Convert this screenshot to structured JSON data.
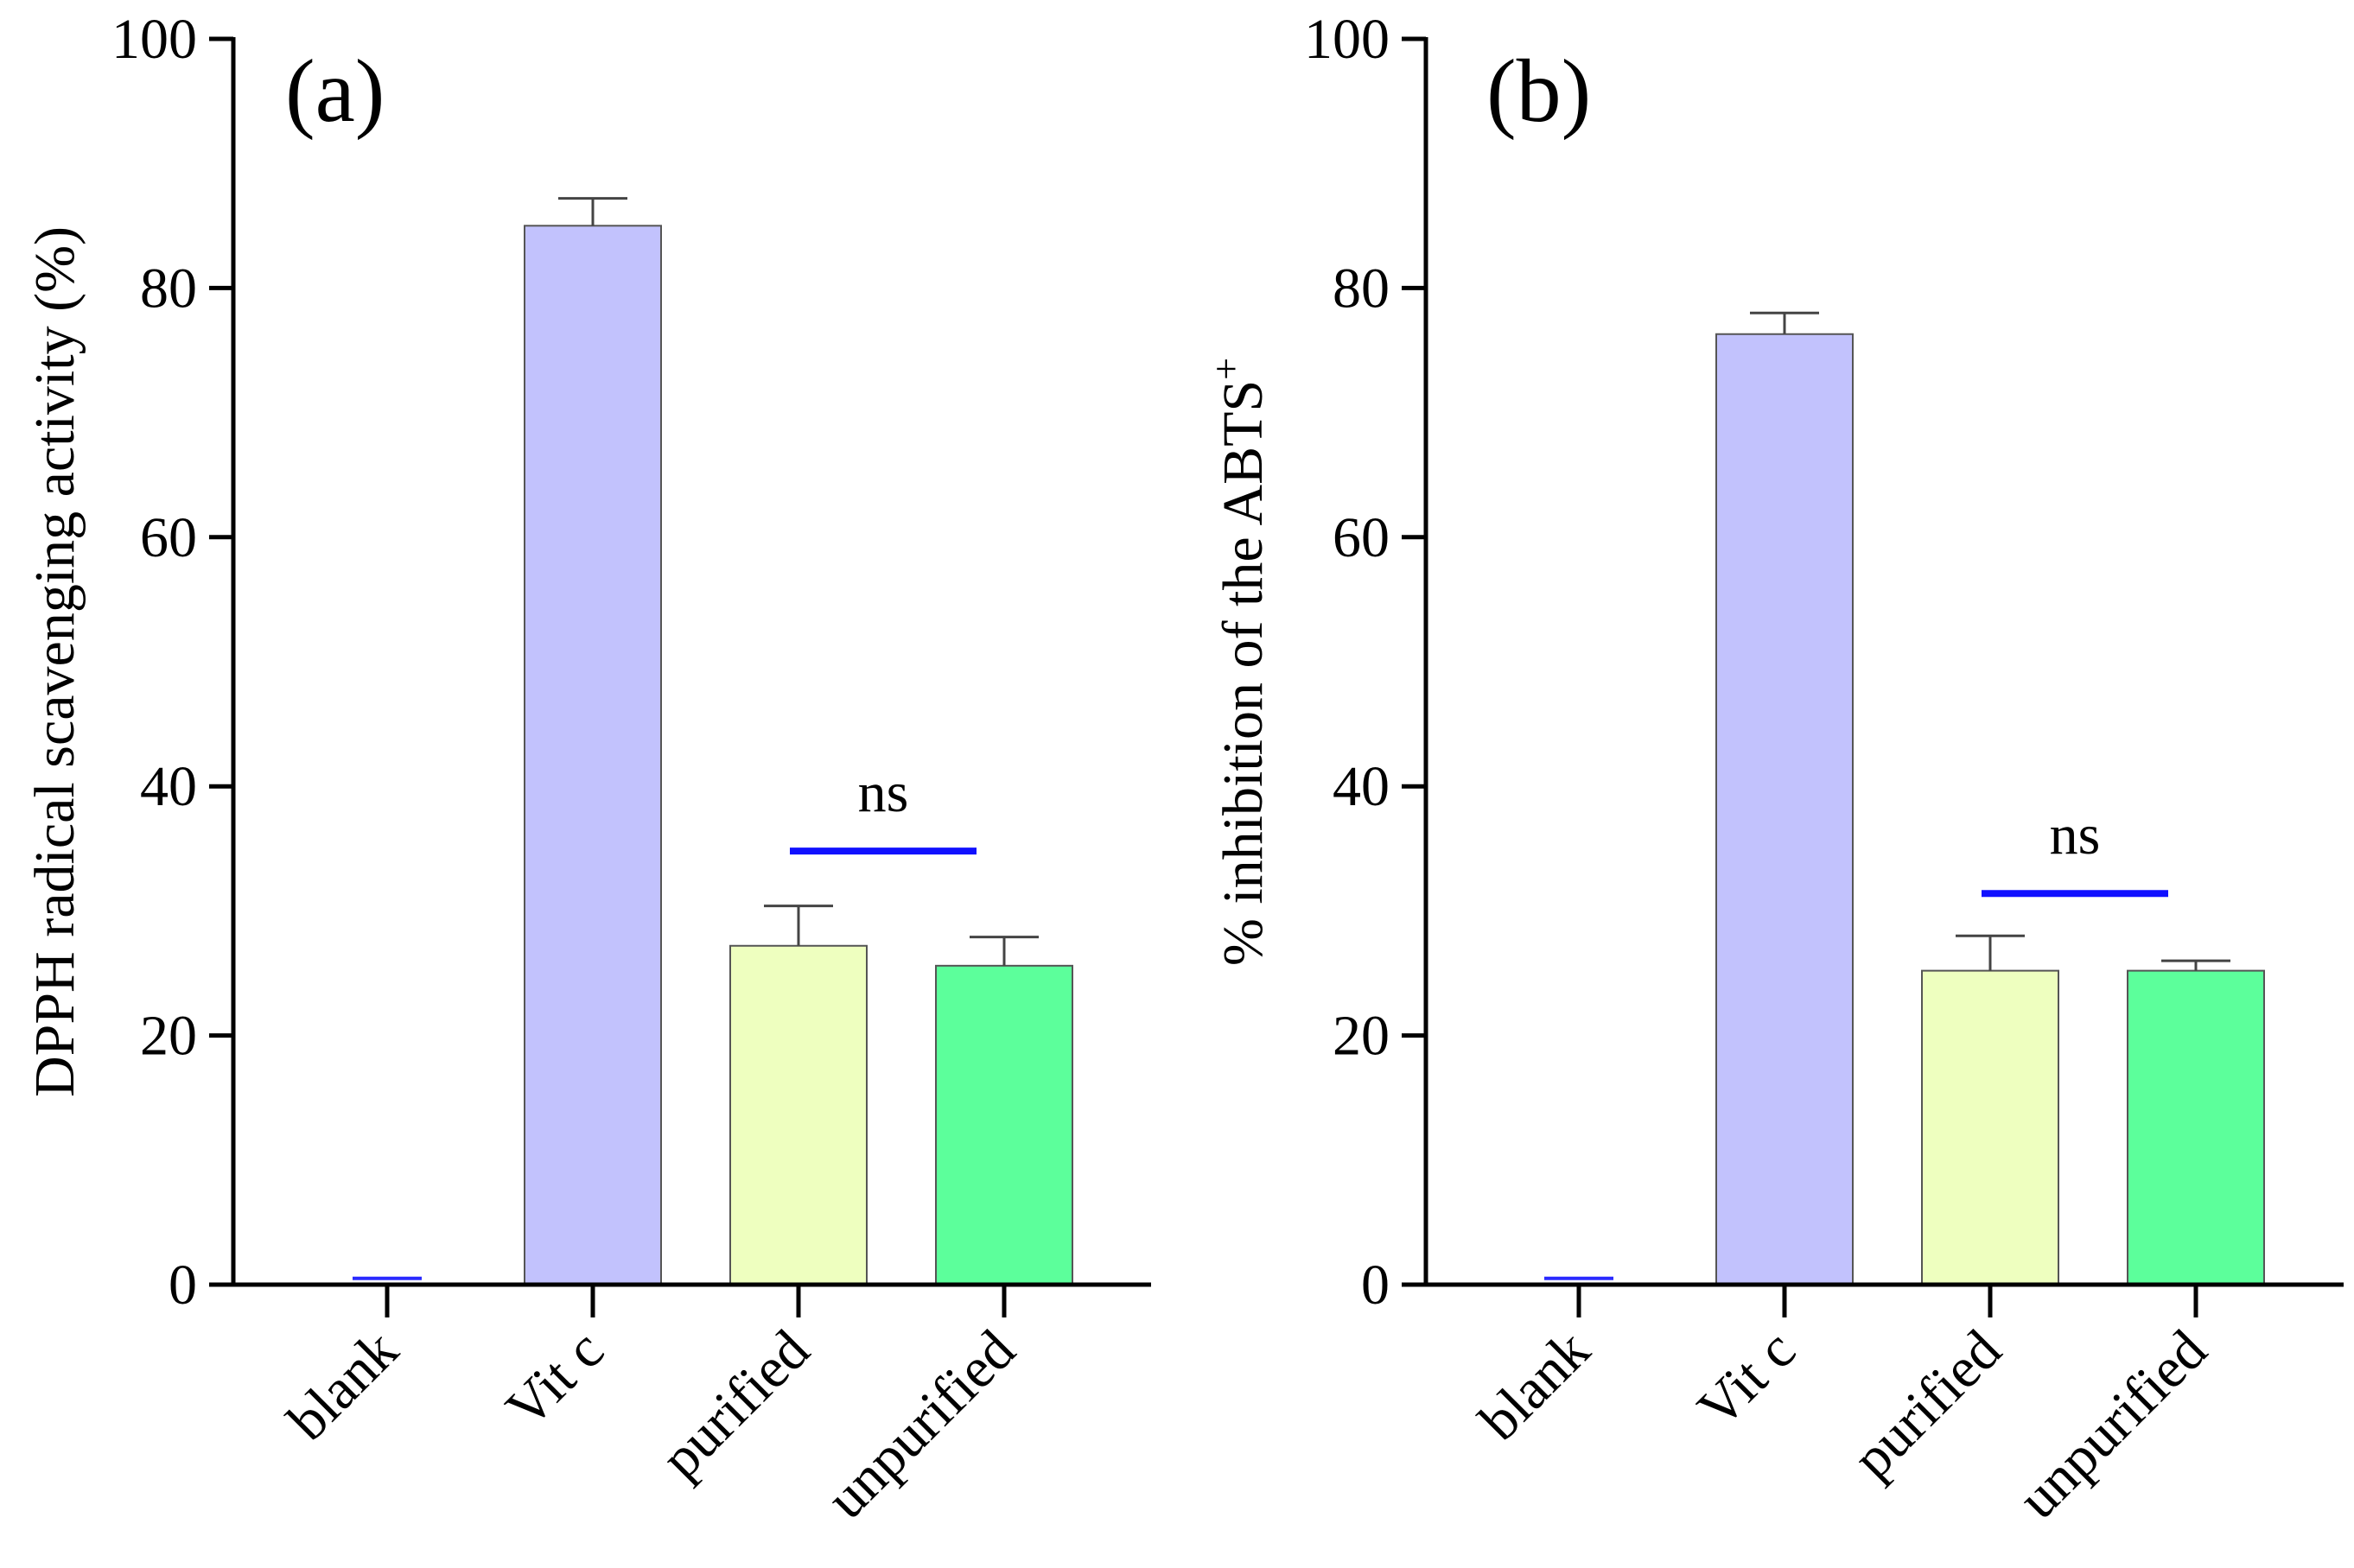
{
  "colors": {
    "blank": "#2a2aff",
    "vit_c": "#c2c2fd",
    "purified": "#eeffbf",
    "unpurified": "#5cff9b",
    "significance_bar": "#1010ff",
    "bar_border": "#555555"
  },
  "chart_data": [
    {
      "type": "bar",
      "panel_label": "(a)",
      "ylabel": "DPPH radical scavenging activity  (%)",
      "xlabel": "",
      "categories": [
        "blank",
        "Vit c",
        "purified",
        "unpurified"
      ],
      "values": [
        0,
        85,
        27.2,
        25.6
      ],
      "errors": [
        0.5,
        2.2,
        3.2,
        2.3
      ],
      "ylim": [
        0,
        100
      ],
      "yticks": [
        "0",
        "20",
        "40",
        "60",
        "80",
        "100"
      ],
      "significance": {
        "label": "ns",
        "from": "purified",
        "to": "unpurified",
        "y": 34.8
      },
      "grid": false
    },
    {
      "type": "bar",
      "panel_label": "(b)",
      "ylabel_main": "% inhibition of the ABTS",
      "ylabel_sup": "+",
      "xlabel": "",
      "categories": [
        "blank",
        "Vit c",
        "purified",
        "unpurified"
      ],
      "values": [
        0,
        76.3,
        25.2,
        25.2
      ],
      "errors": [
        0.5,
        1.7,
        2.8,
        0.8
      ],
      "ylim": [
        0,
        100
      ],
      "yticks": [
        "0",
        "20",
        "40",
        "60",
        "80",
        "100"
      ],
      "significance": {
        "label": "ns",
        "from": "purified",
        "to": "unpurified",
        "y": 31.4
      },
      "grid": false
    }
  ]
}
